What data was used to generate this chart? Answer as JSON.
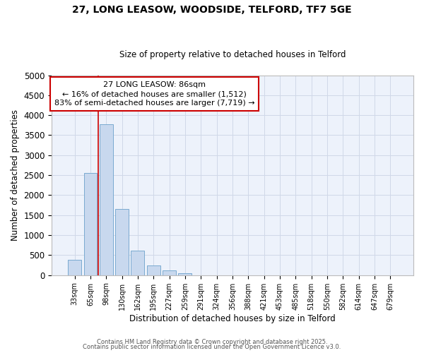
{
  "title1": "27, LONG LEASOW, WOODSIDE, TELFORD, TF7 5GE",
  "title2": "Size of property relative to detached houses in Telford",
  "xlabel": "Distribution of detached houses by size in Telford",
  "ylabel": "Number of detached properties",
  "bar_color": "#c8d8ee",
  "bar_edge_color": "#7aaad0",
  "bg_color": "#edf2fb",
  "grid_color": "#d0d8e8",
  "categories": [
    "33sqm",
    "65sqm",
    "98sqm",
    "130sqm",
    "162sqm",
    "195sqm",
    "227sqm",
    "259sqm",
    "291sqm",
    "324sqm",
    "356sqm",
    "388sqm",
    "421sqm",
    "453sqm",
    "485sqm",
    "518sqm",
    "550sqm",
    "582sqm",
    "614sqm",
    "647sqm",
    "679sqm"
  ],
  "values": [
    390,
    2550,
    3780,
    1650,
    620,
    250,
    110,
    45,
    0,
    0,
    0,
    0,
    0,
    0,
    0,
    0,
    0,
    0,
    0,
    0,
    0
  ],
  "ylim": [
    0,
    5000
  ],
  "yticks": [
    0,
    500,
    1000,
    1500,
    2000,
    2500,
    3000,
    3500,
    4000,
    4500,
    5000
  ],
  "property_line_x": 1.5,
  "annotation_title": "27 LONG LEASOW: 86sqm",
  "annotation_line1": "← 16% of detached houses are smaller (1,512)",
  "annotation_line2": "83% of semi-detached houses are larger (7,719) →",
  "annotation_box_edge_color": "#cc0000",
  "vline_color": "#cc0000",
  "footer1": "Contains HM Land Registry data © Crown copyright and database right 2025.",
  "footer2": "Contains public sector information licensed under the Open Government Licence v3.0."
}
